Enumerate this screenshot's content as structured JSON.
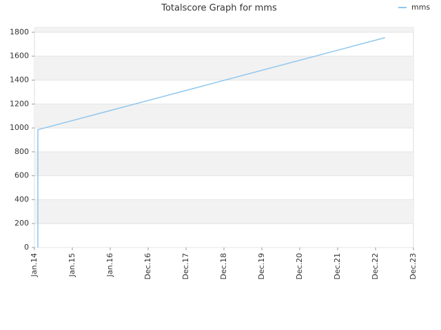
{
  "chart_data": {
    "type": "line",
    "title": "Totalscore Graph for mms",
    "x": [
      0.09,
      0.09,
      9.25
    ],
    "series": [
      {
        "name": "mms",
        "color": "#8ec6ef",
        "values": [
          0,
          985,
          1755
        ]
      }
    ],
    "xlim": [
      0,
      10
    ],
    "xticks": [
      {
        "value": 0,
        "label": "Jan.14"
      },
      {
        "value": 1,
        "label": "Jan.15"
      },
      {
        "value": 2,
        "label": "Jan.16"
      },
      {
        "value": 3,
        "label": "Dec.16"
      },
      {
        "value": 4,
        "label": "Dec.17"
      },
      {
        "value": 5,
        "label": "Dec.18"
      },
      {
        "value": 6,
        "label": "Dec.19"
      },
      {
        "value": 7,
        "label": "Dec.20"
      },
      {
        "value": 8,
        "label": "Dec.21"
      },
      {
        "value": 9,
        "label": "Dec.22"
      },
      {
        "value": 10,
        "label": "Dec.23"
      }
    ],
    "ylim": [
      0,
      1840
    ],
    "yticks": [
      0,
      200,
      400,
      600,
      800,
      1000,
      1200,
      1400,
      1600,
      1800
    ],
    "grid": true,
    "legend": "top-right"
  }
}
